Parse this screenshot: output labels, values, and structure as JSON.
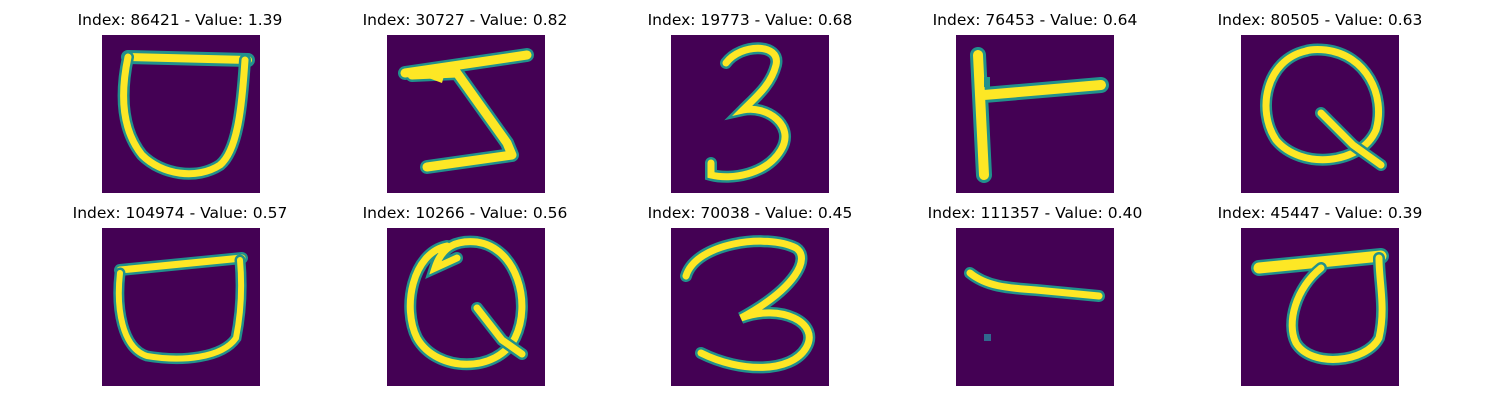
{
  "colors": {
    "background": "#440154",
    "mid": "#21918c",
    "stroke": "#fde725"
  },
  "panels": [
    {
      "title": "Index: 86421 - Value: 1.39",
      "glyph": "U-shape"
    },
    {
      "title": "Index: 30727 - Value: 0.82",
      "glyph": "Z-shape"
    },
    {
      "title": "Index: 19773 - Value: 0.68",
      "glyph": "3"
    },
    {
      "title": "Index: 76453 - Value: 0.64",
      "glyph": "T-rotated"
    },
    {
      "title": "Index: 80505 - Value: 0.63",
      "glyph": "Q"
    },
    {
      "title": "Index: 104974 - Value: 0.57",
      "glyph": "U-shape"
    },
    {
      "title": "Index: 10266 - Value: 0.56",
      "glyph": "Q"
    },
    {
      "title": "Index: 70038 - Value: 0.45",
      "glyph": "3"
    },
    {
      "title": "Index: 111357 - Value: 0.40",
      "glyph": "dash"
    },
    {
      "title": "Index: 45447 - Value: 0.39",
      "glyph": "loop-flag"
    }
  ]
}
